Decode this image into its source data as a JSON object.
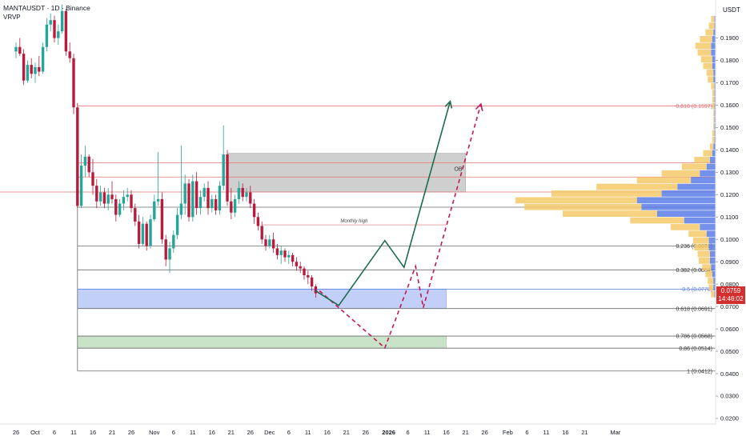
{
  "header": {
    "symbol": "MANTAUSDT · 1D · Binance",
    "indicator": "VRVP",
    "currency": "USDT"
  },
  "last_price": {
    "value": "0.0759",
    "countdown": "14:46:02",
    "color": "#d32f2f"
  },
  "colors": {
    "up": "#26a69a",
    "down": "#b71c3c",
    "level_line": "#6b6b6b",
    "resistance_line": "#e57373",
    "ob_zone": "#a8a8a8",
    "demand_zone": "#8fa8ee",
    "lower_zone": "#9ccc9c",
    "projection_solid": "#1b6b4e",
    "projection_dashed": "#c2185b",
    "volume_up": "#5b7de8",
    "volume_down": "#f5c96a"
  },
  "chart_data": {
    "type": "candlestick",
    "title": "MANTAUSDT · 1D · Binance",
    "ylabel": "USDT",
    "ylim": [
      0.0175,
      0.207
    ],
    "y_ticks": [
      "0.0200",
      "0.0300",
      "0.0400",
      "0.0500",
      "0.0600",
      "0.0700",
      "0.0800",
      "0.0900",
      "0.1000",
      "0.1100",
      "0.1200",
      "0.1300",
      "0.1400",
      "0.1500",
      "0.1600",
      "0.1700",
      "0.1800",
      "0.1900"
    ],
    "x_labels": [
      {
        "day": 0,
        "label": "26"
      },
      {
        "day": 5,
        "label": "Oct"
      },
      {
        "day": 10,
        "label": "6"
      },
      {
        "day": 15,
        "label": "11"
      },
      {
        "day": 20,
        "label": "16"
      },
      {
        "day": 25,
        "label": "21"
      },
      {
        "day": 30,
        "label": "26"
      },
      {
        "day": 36,
        "label": "Nov"
      },
      {
        "day": 41,
        "label": "6"
      },
      {
        "day": 46,
        "label": "11"
      },
      {
        "day": 51,
        "label": "16"
      },
      {
        "day": 56,
        "label": "21"
      },
      {
        "day": 61,
        "label": "26"
      },
      {
        "day": 66,
        "label": "Dec"
      },
      {
        "day": 71,
        "label": "6"
      },
      {
        "day": 76,
        "label": "11"
      },
      {
        "day": 81,
        "label": "16"
      },
      {
        "day": 86,
        "label": "21"
      },
      {
        "day": 91,
        "label": "26"
      },
      {
        "day": 97,
        "label": "2026"
      },
      {
        "day": 102,
        "label": "6"
      },
      {
        "day": 107,
        "label": "11"
      },
      {
        "day": 112,
        "label": "16"
      },
      {
        "day": 117,
        "label": "21"
      },
      {
        "day": 122,
        "label": "26"
      },
      {
        "day": 128,
        "label": "Feb"
      },
      {
        "day": 133,
        "label": "6"
      },
      {
        "day": 138,
        "label": "11"
      },
      {
        "day": 143,
        "label": "16"
      },
      {
        "day": 148,
        "label": "21"
      },
      {
        "day": 156,
        "label": "Mar"
      }
    ],
    "candles": [
      {
        "d": 0,
        "o": 0.184,
        "h": 0.188,
        "l": 0.181,
        "c": 0.186
      },
      {
        "d": 1,
        "o": 0.186,
        "h": 0.19,
        "l": 0.182,
        "c": 0.183
      },
      {
        "d": 2,
        "o": 0.183,
        "h": 0.185,
        "l": 0.169,
        "c": 0.171
      },
      {
        "d": 3,
        "o": 0.171,
        "h": 0.18,
        "l": 0.17,
        "c": 0.178
      },
      {
        "d": 4,
        "o": 0.178,
        "h": 0.181,
        "l": 0.172,
        "c": 0.174
      },
      {
        "d": 5,
        "o": 0.174,
        "h": 0.179,
        "l": 0.17,
        "c": 0.177
      },
      {
        "d": 6,
        "o": 0.177,
        "h": 0.182,
        "l": 0.173,
        "c": 0.175
      },
      {
        "d": 7,
        "o": 0.175,
        "h": 0.188,
        "l": 0.174,
        "c": 0.186
      },
      {
        "d": 8,
        "o": 0.186,
        "h": 0.199,
        "l": 0.184,
        "c": 0.196
      },
      {
        "d": 9,
        "o": 0.196,
        "h": 0.201,
        "l": 0.193,
        "c": 0.198
      },
      {
        "d": 10,
        "o": 0.198,
        "h": 0.2,
        "l": 0.188,
        "c": 0.19
      },
      {
        "d": 11,
        "o": 0.19,
        "h": 0.196,
        "l": 0.187,
        "c": 0.193
      },
      {
        "d": 12,
        "o": 0.193,
        "h": 0.205,
        "l": 0.192,
        "c": 0.202
      },
      {
        "d": 13,
        "o": 0.202,
        "h": 0.203,
        "l": 0.182,
        "c": 0.184
      },
      {
        "d": 14,
        "o": 0.184,
        "h": 0.188,
        "l": 0.179,
        "c": 0.181
      },
      {
        "d": 15,
        "o": 0.181,
        "h": 0.183,
        "l": 0.156,
        "c": 0.159
      },
      {
        "d": 16,
        "o": 0.159,
        "h": 0.161,
        "l": 0.114,
        "c": 0.115
      },
      {
        "d": 17,
        "o": 0.115,
        "h": 0.138,
        "l": 0.114,
        "c": 0.133
      },
      {
        "d": 18,
        "o": 0.133,
        "h": 0.142,
        "l": 0.128,
        "c": 0.137
      },
      {
        "d": 19,
        "o": 0.137,
        "h": 0.138,
        "l": 0.128,
        "c": 0.13
      },
      {
        "d": 20,
        "o": 0.13,
        "h": 0.136,
        "l": 0.12,
        "c": 0.124
      },
      {
        "d": 21,
        "o": 0.124,
        "h": 0.127,
        "l": 0.114,
        "c": 0.117
      },
      {
        "d": 22,
        "o": 0.117,
        "h": 0.124,
        "l": 0.115,
        "c": 0.121
      },
      {
        "d": 23,
        "o": 0.121,
        "h": 0.123,
        "l": 0.114,
        "c": 0.116
      },
      {
        "d": 24,
        "o": 0.116,
        "h": 0.123,
        "l": 0.113,
        "c": 0.12
      },
      {
        "d": 25,
        "o": 0.12,
        "h": 0.126,
        "l": 0.116,
        "c": 0.118
      },
      {
        "d": 26,
        "o": 0.118,
        "h": 0.12,
        "l": 0.108,
        "c": 0.111
      },
      {
        "d": 27,
        "o": 0.111,
        "h": 0.118,
        "l": 0.11,
        "c": 0.116
      },
      {
        "d": 28,
        "o": 0.116,
        "h": 0.122,
        "l": 0.113,
        "c": 0.119
      },
      {
        "d": 29,
        "o": 0.119,
        "h": 0.123,
        "l": 0.117,
        "c": 0.12
      },
      {
        "d": 30,
        "o": 0.12,
        "h": 0.122,
        "l": 0.112,
        "c": 0.114
      },
      {
        "d": 31,
        "o": 0.114,
        "h": 0.116,
        "l": 0.106,
        "c": 0.108
      },
      {
        "d": 32,
        "o": 0.108,
        "h": 0.111,
        "l": 0.096,
        "c": 0.098
      },
      {
        "d": 33,
        "o": 0.098,
        "h": 0.11,
        "l": 0.097,
        "c": 0.107
      },
      {
        "d": 34,
        "o": 0.107,
        "h": 0.108,
        "l": 0.095,
        "c": 0.097
      },
      {
        "d": 35,
        "o": 0.097,
        "h": 0.111,
        "l": 0.096,
        "c": 0.109
      },
      {
        "d": 36,
        "o": 0.109,
        "h": 0.12,
        "l": 0.108,
        "c": 0.117
      },
      {
        "d": 37,
        "o": 0.117,
        "h": 0.139,
        "l": 0.115,
        "c": 0.118
      },
      {
        "d": 38,
        "o": 0.118,
        "h": 0.121,
        "l": 0.098,
        "c": 0.1
      },
      {
        "d": 39,
        "o": 0.1,
        "h": 0.102,
        "l": 0.088,
        "c": 0.091
      },
      {
        "d": 40,
        "o": 0.091,
        "h": 0.099,
        "l": 0.085,
        "c": 0.096
      },
      {
        "d": 41,
        "o": 0.096,
        "h": 0.104,
        "l": 0.094,
        "c": 0.102
      },
      {
        "d": 42,
        "o": 0.102,
        "h": 0.114,
        "l": 0.1,
        "c": 0.111
      },
      {
        "d": 43,
        "o": 0.111,
        "h": 0.142,
        "l": 0.109,
        "c": 0.116
      },
      {
        "d": 44,
        "o": 0.116,
        "h": 0.129,
        "l": 0.111,
        "c": 0.125
      },
      {
        "d": 45,
        "o": 0.125,
        "h": 0.127,
        "l": 0.108,
        "c": 0.11
      },
      {
        "d": 46,
        "o": 0.11,
        "h": 0.129,
        "l": 0.108,
        "c": 0.126
      },
      {
        "d": 47,
        "o": 0.126,
        "h": 0.13,
        "l": 0.111,
        "c": 0.114
      },
      {
        "d": 48,
        "o": 0.114,
        "h": 0.122,
        "l": 0.111,
        "c": 0.119
      },
      {
        "d": 49,
        "o": 0.119,
        "h": 0.125,
        "l": 0.117,
        "c": 0.123
      },
      {
        "d": 50,
        "o": 0.123,
        "h": 0.126,
        "l": 0.111,
        "c": 0.114
      },
      {
        "d": 51,
        "o": 0.114,
        "h": 0.12,
        "l": 0.112,
        "c": 0.118
      },
      {
        "d": 52,
        "o": 0.118,
        "h": 0.12,
        "l": 0.111,
        "c": 0.113
      },
      {
        "d": 53,
        "o": 0.113,
        "h": 0.126,
        "l": 0.111,
        "c": 0.124
      },
      {
        "d": 54,
        "o": 0.124,
        "h": 0.151,
        "l": 0.122,
        "c": 0.138
      },
      {
        "d": 55,
        "o": 0.138,
        "h": 0.14,
        "l": 0.115,
        "c": 0.117
      },
      {
        "d": 56,
        "o": 0.117,
        "h": 0.123,
        "l": 0.109,
        "c": 0.112
      },
      {
        "d": 57,
        "o": 0.112,
        "h": 0.12,
        "l": 0.11,
        "c": 0.118
      },
      {
        "d": 58,
        "o": 0.118,
        "h": 0.126,
        "l": 0.116,
        "c": 0.123
      },
      {
        "d": 59,
        "o": 0.123,
        "h": 0.125,
        "l": 0.117,
        "c": 0.119
      },
      {
        "d": 60,
        "o": 0.119,
        "h": 0.123,
        "l": 0.117,
        "c": 0.121
      },
      {
        "d": 61,
        "o": 0.121,
        "h": 0.124,
        "l": 0.114,
        "c": 0.116
      },
      {
        "d": 62,
        "o": 0.116,
        "h": 0.118,
        "l": 0.107,
        "c": 0.11
      },
      {
        "d": 63,
        "o": 0.11,
        "h": 0.112,
        "l": 0.104,
        "c": 0.106
      },
      {
        "d": 64,
        "o": 0.106,
        "h": 0.108,
        "l": 0.098,
        "c": 0.1
      },
      {
        "d": 65,
        "o": 0.1,
        "h": 0.102,
        "l": 0.095,
        "c": 0.097
      },
      {
        "d": 66,
        "o": 0.097,
        "h": 0.102,
        "l": 0.096,
        "c": 0.1
      },
      {
        "d": 67,
        "o": 0.1,
        "h": 0.103,
        "l": 0.094,
        "c": 0.096
      },
      {
        "d": 68,
        "o": 0.096,
        "h": 0.098,
        "l": 0.091,
        "c": 0.093
      },
      {
        "d": 69,
        "o": 0.093,
        "h": 0.097,
        "l": 0.089,
        "c": 0.095
      },
      {
        "d": 70,
        "o": 0.095,
        "h": 0.096,
        "l": 0.09,
        "c": 0.092
      },
      {
        "d": 71,
        "o": 0.092,
        "h": 0.095,
        "l": 0.089,
        "c": 0.093
      },
      {
        "d": 72,
        "o": 0.093,
        "h": 0.094,
        "l": 0.088,
        "c": 0.09
      },
      {
        "d": 73,
        "o": 0.09,
        "h": 0.092,
        "l": 0.086,
        "c": 0.088
      },
      {
        "d": 74,
        "o": 0.088,
        "h": 0.09,
        "l": 0.085,
        "c": 0.087
      },
      {
        "d": 75,
        "o": 0.087,
        "h": 0.088,
        "l": 0.082,
        "c": 0.084
      },
      {
        "d": 76,
        "o": 0.084,
        "h": 0.086,
        "l": 0.08,
        "c": 0.083
      },
      {
        "d": 77,
        "o": 0.083,
        "h": 0.084,
        "l": 0.077,
        "c": 0.079
      },
      {
        "d": 78,
        "o": 0.079,
        "h": 0.08,
        "l": 0.074,
        "c": 0.0759
      }
    ],
    "fib_levels": [
      {
        "label": "-0.618 (0.1597)",
        "price": 0.1597,
        "color": "#e57373"
      },
      {
        "label": "0.236 (0.0971)",
        "price": 0.0971,
        "color": "#6b6b6b"
      },
      {
        "label": "0.382 (0.0864)",
        "price": 0.0864,
        "color": "#6b6b6b"
      },
      {
        "label": "0.5 (0.0778)",
        "price": 0.0778,
        "color": "#5b7de8"
      },
      {
        "label": "0.618 (0.0691)",
        "price": 0.0691,
        "color": "#6b6b6b"
      },
      {
        "label": "0.786 (0.0568)",
        "price": 0.0568,
        "color": "#6b6b6b"
      },
      {
        "label": "0.86 (0.0514)",
        "price": 0.0514,
        "color": "#6b6b6b"
      },
      {
        "label": "1 (0.0412)",
        "price": 0.0412,
        "color": "#6b6b6b"
      }
    ],
    "extra_lines": [
      {
        "price": 0.1342,
        "color": "#e57373"
      },
      {
        "price": 0.1279,
        "color": "#e57373"
      },
      {
        "price": 0.1212,
        "color": "#e57373",
        "full_width": true
      },
      {
        "price": 0.1144,
        "color": "#6b6b6b"
      }
    ],
    "zones": [
      {
        "name": "OB",
        "label": "OB",
        "d0": 55,
        "d1": 117,
        "p_top": 0.1385,
        "p_bottom": 0.1212,
        "color": "#a8a8a8"
      },
      {
        "name": "demand",
        "label": "",
        "d0": 16,
        "d1": 112,
        "p_top": 0.0778,
        "p_bottom": 0.0691,
        "color": "#8fa8ee"
      },
      {
        "name": "lower",
        "label": "",
        "d0": 16,
        "d1": 112,
        "p_top": 0.0568,
        "p_bottom": 0.0514,
        "color": "#9ccc9c"
      }
    ],
    "monthly_high": {
      "label": "Monthly high",
      "price": 0.1065,
      "d0": 64,
      "d1": 112
    },
    "projection_solid": [
      {
        "d": 78,
        "p": 0.077
      },
      {
        "d": 84,
        "p": 0.0705
      },
      {
        "d": 96,
        "p": 0.0995
      },
      {
        "d": 101,
        "p": 0.0875
      },
      {
        "d": 113,
        "p": 0.1617
      }
    ],
    "projection_dashed": [
      {
        "d": 79,
        "p": 0.077
      },
      {
        "d": 96,
        "p": 0.0515
      },
      {
        "d": 104,
        "p": 0.088
      },
      {
        "d": 106,
        "p": 0.0695
      },
      {
        "d": 121,
        "p": 0.1605
      }
    ],
    "volume_profile": [
      {
        "p": 0.1985,
        "up": 1,
        "down": 3
      },
      {
        "p": 0.1955,
        "up": 1,
        "down": 5
      },
      {
        "p": 0.1925,
        "up": 2,
        "down": 7
      },
      {
        "p": 0.1895,
        "up": 3,
        "down": 11
      },
      {
        "p": 0.1865,
        "up": 4,
        "down": 14
      },
      {
        "p": 0.1835,
        "up": 4,
        "down": 12
      },
      {
        "p": 0.1805,
        "up": 3,
        "down": 10
      },
      {
        "p": 0.1775,
        "up": 3,
        "down": 8
      },
      {
        "p": 0.1745,
        "up": 2,
        "down": 6
      },
      {
        "p": 0.1715,
        "up": 2,
        "down": 5
      },
      {
        "p": 0.1685,
        "up": 1,
        "down": 3
      },
      {
        "p": 0.1655,
        "up": 1,
        "down": 2
      },
      {
        "p": 0.1625,
        "up": 1,
        "down": 2
      },
      {
        "p": 0.1595,
        "up": 1,
        "down": 2
      },
      {
        "p": 0.1565,
        "up": 1,
        "down": 1
      },
      {
        "p": 0.1535,
        "up": 1,
        "down": 1
      },
      {
        "p": 0.1505,
        "up": 1,
        "down": 1
      },
      {
        "p": 0.1475,
        "up": 1,
        "down": 2
      },
      {
        "p": 0.1445,
        "up": 1,
        "down": 2
      },
      {
        "p": 0.1415,
        "up": 2,
        "down": 3
      },
      {
        "p": 0.1385,
        "up": 3,
        "down": 8
      },
      {
        "p": 0.1355,
        "up": 5,
        "down": 14
      },
      {
        "p": 0.1325,
        "up": 8,
        "down": 22
      },
      {
        "p": 0.1295,
        "up": 14,
        "down": 34
      },
      {
        "p": 0.1265,
        "up": 22,
        "down": 48
      },
      {
        "p": 0.1235,
        "up": 34,
        "down": 72
      },
      {
        "p": 0.1205,
        "up": 48,
        "down": 98
      },
      {
        "p": 0.1175,
        "up": 70,
        "down": 108
      },
      {
        "p": 0.1145,
        "up": 66,
        "down": 104
      },
      {
        "p": 0.1115,
        "up": 52,
        "down": 84
      },
      {
        "p": 0.1085,
        "up": 28,
        "down": 48
      },
      {
        "p": 0.1055,
        "up": 14,
        "down": 26
      },
      {
        "p": 0.1025,
        "up": 8,
        "down": 16
      },
      {
        "p": 0.0995,
        "up": 6,
        "down": 14
      },
      {
        "p": 0.0965,
        "up": 6,
        "down": 13
      },
      {
        "p": 0.0935,
        "up": 5,
        "down": 11
      },
      {
        "p": 0.0905,
        "up": 5,
        "down": 10
      },
      {
        "p": 0.0875,
        "up": 4,
        "down": 8
      },
      {
        "p": 0.0845,
        "up": 3,
        "down": 6
      },
      {
        "p": 0.0815,
        "up": 2,
        "down": 5
      },
      {
        "p": 0.0785,
        "up": 2,
        "down": 4
      },
      {
        "p": 0.0755,
        "up": 1,
        "down": 3
      }
    ]
  }
}
